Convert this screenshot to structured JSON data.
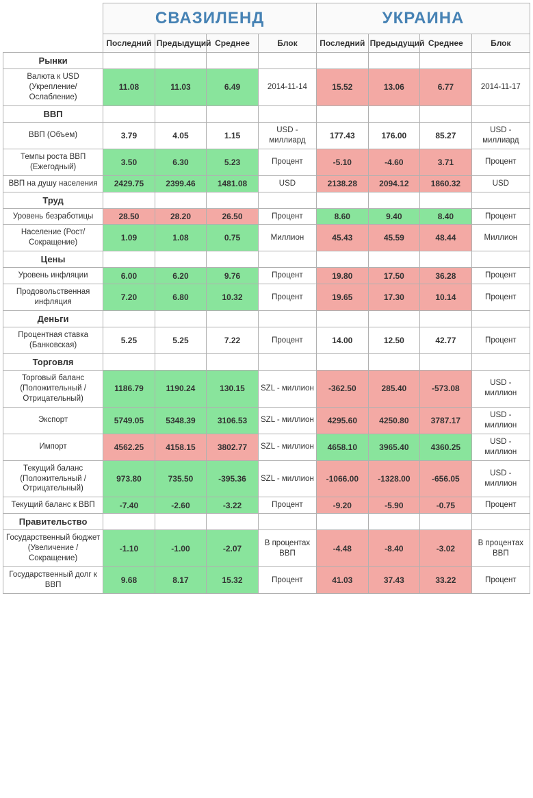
{
  "colors": {
    "green": "#89e49c",
    "red": "#f3a9a4",
    "white": "#ffffff"
  },
  "col_headers": [
    "Последний",
    "Предыдущий",
    "Среднее",
    "Блок"
  ],
  "countries": [
    "СВАЗИЛЕНД",
    "УКРАИНА"
  ],
  "sections": [
    {
      "title": "Рынки",
      "rows": [
        {
          "label": "Валюта к USD (Укрепление/ Ослабление)",
          "a": {
            "vals": [
              "11.08",
              "11.03",
              "6.49"
            ],
            "colors": [
              "green",
              "green",
              "green"
            ],
            "unit": "2014-11-14"
          },
          "b": {
            "vals": [
              "15.52",
              "13.06",
              "6.77"
            ],
            "colors": [
              "red",
              "red",
              "red"
            ],
            "unit": "2014-11-17"
          }
        }
      ]
    },
    {
      "title": "ВВП",
      "rows": [
        {
          "label": "ВВП (Объем)",
          "a": {
            "vals": [
              "3.79",
              "4.05",
              "1.15"
            ],
            "colors": [
              "white",
              "white",
              "white"
            ],
            "unit": "USD - миллиард"
          },
          "b": {
            "vals": [
              "177.43",
              "176.00",
              "85.27"
            ],
            "colors": [
              "white",
              "white",
              "white"
            ],
            "unit": "USD - миллиард"
          }
        },
        {
          "label": "Темпы роста ВВП (Ежегодный)",
          "a": {
            "vals": [
              "3.50",
              "6.30",
              "5.23"
            ],
            "colors": [
              "green",
              "green",
              "green"
            ],
            "unit": "Процент"
          },
          "b": {
            "vals": [
              "-5.10",
              "-4.60",
              "3.71"
            ],
            "colors": [
              "red",
              "red",
              "red"
            ],
            "unit": "Процент"
          }
        },
        {
          "label": "ВВП на душу населения",
          "a": {
            "vals": [
              "2429.75",
              "2399.46",
              "1481.08"
            ],
            "colors": [
              "green",
              "green",
              "green"
            ],
            "unit": "USD"
          },
          "b": {
            "vals": [
              "2138.28",
              "2094.12",
              "1860.32"
            ],
            "colors": [
              "red",
              "red",
              "red"
            ],
            "unit": "USD"
          }
        }
      ]
    },
    {
      "title": "Труд",
      "rows": [
        {
          "label": "Уровень безработицы",
          "a": {
            "vals": [
              "28.50",
              "28.20",
              "26.50"
            ],
            "colors": [
              "red",
              "red",
              "red"
            ],
            "unit": "Процент"
          },
          "b": {
            "vals": [
              "8.60",
              "9.40",
              "8.40"
            ],
            "colors": [
              "green",
              "green",
              "green"
            ],
            "unit": "Процент"
          }
        },
        {
          "label": "Население (Рост/Сокращение)",
          "a": {
            "vals": [
              "1.09",
              "1.08",
              "0.75"
            ],
            "colors": [
              "green",
              "green",
              "green"
            ],
            "unit": "Миллион"
          },
          "b": {
            "vals": [
              "45.43",
              "45.59",
              "48.44"
            ],
            "colors": [
              "red",
              "red",
              "red"
            ],
            "unit": "Миллион"
          }
        }
      ]
    },
    {
      "title": "Цены",
      "rows": [
        {
          "label": "Уровень инфляции",
          "a": {
            "vals": [
              "6.00",
              "6.20",
              "9.76"
            ],
            "colors": [
              "green",
              "green",
              "green"
            ],
            "unit": "Процент"
          },
          "b": {
            "vals": [
              "19.80",
              "17.50",
              "36.28"
            ],
            "colors": [
              "red",
              "red",
              "red"
            ],
            "unit": "Процент"
          }
        },
        {
          "label": "Продовольственная инфляция",
          "a": {
            "vals": [
              "7.20",
              "6.80",
              "10.32"
            ],
            "colors": [
              "green",
              "green",
              "green"
            ],
            "unit": "Процент"
          },
          "b": {
            "vals": [
              "19.65",
              "17.30",
              "10.14"
            ],
            "colors": [
              "red",
              "red",
              "red"
            ],
            "unit": "Процент"
          }
        }
      ]
    },
    {
      "title": "Деньги",
      "rows": [
        {
          "label": "Процентная ставка (Банковская)",
          "a": {
            "vals": [
              "5.25",
              "5.25",
              "7.22"
            ],
            "colors": [
              "white",
              "white",
              "white"
            ],
            "unit": "Процент"
          },
          "b": {
            "vals": [
              "14.00",
              "12.50",
              "42.77"
            ],
            "colors": [
              "white",
              "white",
              "white"
            ],
            "unit": "Процент"
          }
        }
      ]
    },
    {
      "title": "Торговля",
      "rows": [
        {
          "label": "Торговый баланс (Положительный /Отрицательный)",
          "a": {
            "vals": [
              "1186.79",
              "1190.24",
              "130.15"
            ],
            "colors": [
              "green",
              "green",
              "green"
            ],
            "unit": "SZL - миллион"
          },
          "b": {
            "vals": [
              "-362.50",
              "285.40",
              "-573.08"
            ],
            "colors": [
              "red",
              "red",
              "red"
            ],
            "unit": "USD - миллион"
          }
        },
        {
          "label": "Экспорт",
          "a": {
            "vals": [
              "5749.05",
              "5348.39",
              "3106.53"
            ],
            "colors": [
              "green",
              "green",
              "green"
            ],
            "unit": "SZL - миллион"
          },
          "b": {
            "vals": [
              "4295.60",
              "4250.80",
              "3787.17"
            ],
            "colors": [
              "red",
              "red",
              "red"
            ],
            "unit": "USD - миллион"
          }
        },
        {
          "label": "Импорт",
          "a": {
            "vals": [
              "4562.25",
              "4158.15",
              "3802.77"
            ],
            "colors": [
              "red",
              "red",
              "red"
            ],
            "unit": "SZL - миллион"
          },
          "b": {
            "vals": [
              "4658.10",
              "3965.40",
              "4360.25"
            ],
            "colors": [
              "green",
              "green",
              "green"
            ],
            "unit": "USD - миллион"
          }
        },
        {
          "label": "Текущий баланс (Положительный /Отрицательный)",
          "a": {
            "vals": [
              "973.80",
              "735.50",
              "-395.36"
            ],
            "colors": [
              "green",
              "green",
              "green"
            ],
            "unit": "SZL - миллион"
          },
          "b": {
            "vals": [
              "-1066.00",
              "-1328.00",
              "-656.05"
            ],
            "colors": [
              "red",
              "red",
              "red"
            ],
            "unit": "USD - миллион"
          }
        },
        {
          "label": "Текущий баланс к ВВП",
          "a": {
            "vals": [
              "-7.40",
              "-2.60",
              "-3.22"
            ],
            "colors": [
              "green",
              "green",
              "green"
            ],
            "unit": "Процент"
          },
          "b": {
            "vals": [
              "-9.20",
              "-5.90",
              "-0.75"
            ],
            "colors": [
              "red",
              "red",
              "red"
            ],
            "unit": "Процент"
          }
        }
      ]
    },
    {
      "title": "Правительство",
      "rows": [
        {
          "label": "Государственный бюджет (Увеличение /Сокращение)",
          "a": {
            "vals": [
              "-1.10",
              "-1.00",
              "-2.07"
            ],
            "colors": [
              "green",
              "green",
              "green"
            ],
            "unit": "В процентах ВВП"
          },
          "b": {
            "vals": [
              "-4.48",
              "-8.40",
              "-3.02"
            ],
            "colors": [
              "red",
              "red",
              "red"
            ],
            "unit": "В процентах ВВП"
          }
        },
        {
          "label": "Государственный долг к ВВП",
          "a": {
            "vals": [
              "9.68",
              "8.17",
              "15.32"
            ],
            "colors": [
              "green",
              "green",
              "green"
            ],
            "unit": "Процент"
          },
          "b": {
            "vals": [
              "41.03",
              "37.43",
              "33.22"
            ],
            "colors": [
              "red",
              "red",
              "red"
            ],
            "unit": "Процент"
          }
        }
      ]
    }
  ]
}
